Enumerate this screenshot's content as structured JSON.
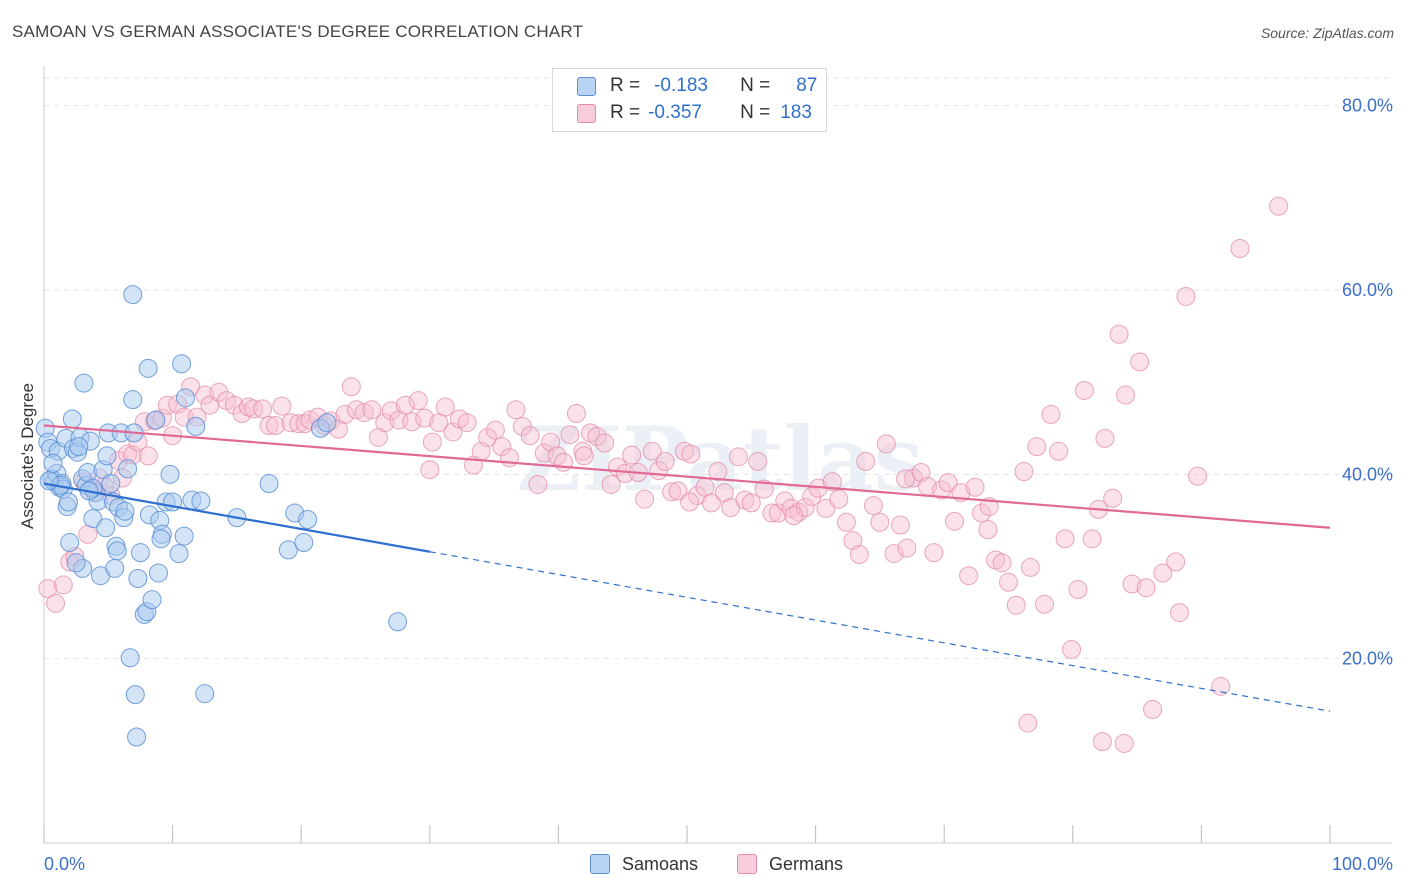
{
  "header": {
    "title": "SAMOAN VS GERMAN ASSOCIATE'S DEGREE CORRELATION CHART",
    "source": "Source: ZipAtlas.com"
  },
  "legend": {
    "samoans": {
      "r_label": "R =",
      "r_value": "-0.183",
      "n_label": "N =",
      "n_value": "87"
    },
    "germans": {
      "r_label": "R =",
      "r_value": "-0.357",
      "n_label": "N =",
      "n_value": "183"
    }
  },
  "watermark": "ZIPatlas",
  "colors": {
    "samoan_fill": "#a9c9f0",
    "samoan_stroke": "#5b8fd6",
    "samoan_line": "#2f6fcf",
    "german_fill": "#f6bfd0",
    "german_stroke": "#e38aa8",
    "german_line": "#e06a94",
    "axis_label": "#3b6fc9"
  },
  "chart_data": {
    "type": "scatter",
    "title": "SAMOAN VS GERMAN ASSOCIATE'S DEGREE CORRELATION CHART",
    "xlabel": "",
    "ylabel": "Associate's Degree",
    "xlim": [
      0,
      100
    ],
    "ylim": [
      0,
      83
    ],
    "x_tick_labels": [
      "0.0%",
      "100.0%"
    ],
    "y_ticks": [
      20,
      40,
      60,
      80
    ],
    "y_tick_labels": [
      "20.0%",
      "40.0%",
      "60.0%",
      "80.0%"
    ],
    "grid": true,
    "legend_position": "bottom",
    "series": [
      {
        "name": "Samoans",
        "r": -0.183,
        "n": 87,
        "trend": {
          "x": [
            0,
            30
          ],
          "y": [
            39.0,
            31.6
          ],
          "extended_x": [
            30,
            100
          ],
          "extended_y": [
            31.6,
            14.3
          ]
        },
        "points": [
          [
            0.1,
            45.0
          ],
          [
            0.3,
            43.5
          ],
          [
            0.5,
            42.8
          ],
          [
            0.6,
            39.5
          ],
          [
            0.8,
            39.2
          ],
          [
            1.0,
            40.1
          ],
          [
            1.1,
            42.5
          ],
          [
            1.2,
            38.6
          ],
          [
            1.4,
            39.0
          ],
          [
            1.5,
            38.4
          ],
          [
            1.7,
            43.9
          ],
          [
            1.8,
            36.5
          ],
          [
            2.0,
            32.6
          ],
          [
            2.2,
            46.0
          ],
          [
            2.3,
            42.8
          ],
          [
            2.6,
            42.4
          ],
          [
            2.8,
            44.0
          ],
          [
            3.0,
            39.5
          ],
          [
            3.0,
            29.8
          ],
          [
            3.1,
            49.9
          ],
          [
            3.3,
            38.8
          ],
          [
            3.4,
            40.2
          ],
          [
            3.6,
            43.6
          ],
          [
            3.8,
            35.2
          ],
          [
            4.0,
            38.0
          ],
          [
            4.2,
            37.1
          ],
          [
            4.4,
            29.0
          ],
          [
            4.6,
            40.5
          ],
          [
            4.8,
            34.2
          ],
          [
            5.0,
            44.5
          ],
          [
            5.2,
            39.0
          ],
          [
            5.4,
            37.0
          ],
          [
            5.6,
            32.2
          ],
          [
            5.7,
            31.7
          ],
          [
            5.8,
            36.4
          ],
          [
            6.0,
            44.5
          ],
          [
            6.2,
            35.3
          ],
          [
            6.5,
            40.6
          ],
          [
            6.7,
            20.1
          ],
          [
            6.9,
            48.1
          ],
          [
            7.0,
            44.5
          ],
          [
            7.1,
            16.1
          ],
          [
            7.3,
            28.7
          ],
          [
            7.5,
            31.5
          ],
          [
            7.8,
            24.8
          ],
          [
            8.0,
            25.1
          ],
          [
            8.1,
            51.5
          ],
          [
            8.2,
            35.6
          ],
          [
            8.4,
            26.4
          ],
          [
            8.7,
            45.9
          ],
          [
            8.9,
            29.3
          ],
          [
            9.0,
            35.0
          ],
          [
            9.2,
            33.5
          ],
          [
            9.5,
            37.0
          ],
          [
            9.8,
            40.0
          ],
          [
            10.0,
            37.0
          ],
          [
            10.5,
            31.4
          ],
          [
            10.7,
            52.0
          ],
          [
            10.9,
            33.3
          ],
          [
            11.0,
            48.3
          ],
          [
            11.5,
            37.2
          ],
          [
            11.8,
            45.2
          ],
          [
            12.2,
            37.1
          ],
          [
            12.5,
            16.2
          ],
          [
            15.0,
            35.3
          ],
          [
            17.5,
            39.0
          ],
          [
            19.0,
            31.8
          ],
          [
            19.5,
            35.8
          ],
          [
            20.2,
            32.6
          ],
          [
            20.5,
            35.1
          ],
          [
            21.5,
            45.0
          ],
          [
            22.0,
            45.6
          ],
          [
            27.5,
            24.0
          ],
          [
            7.2,
            11.5
          ],
          [
            6.9,
            59.5
          ],
          [
            3.8,
            38.5
          ],
          [
            2.5,
            30.4
          ],
          [
            1.3,
            38.8
          ],
          [
            0.4,
            39.3
          ],
          [
            4.9,
            42.0
          ],
          [
            5.5,
            29.8
          ],
          [
            3.5,
            38.2
          ],
          [
            6.3,
            36.0
          ],
          [
            9.1,
            33.0
          ],
          [
            1.9,
            37.0
          ],
          [
            2.7,
            43.0
          ],
          [
            0.7,
            41.2
          ]
        ]
      },
      {
        "name": "Germans",
        "r": -0.357,
        "n": 183,
        "trend": {
          "x": [
            0,
            100
          ],
          "y": [
            45.3,
            34.2
          ]
        },
        "points": [
          [
            0.3,
            27.6
          ],
          [
            0.9,
            26.0
          ],
          [
            1.5,
            28.0
          ],
          [
            2.0,
            30.5
          ],
          [
            2.4,
            31.1
          ],
          [
            3.1,
            39.2
          ],
          [
            3.4,
            33.5
          ],
          [
            3.9,
            38.1
          ],
          [
            4.3,
            39.6
          ],
          [
            4.7,
            38.7
          ],
          [
            5.2,
            37.7
          ],
          [
            5.8,
            41.5
          ],
          [
            6.1,
            39.6
          ],
          [
            6.5,
            42.2
          ],
          [
            6.9,
            42.1
          ],
          [
            7.3,
            43.5
          ],
          [
            7.8,
            45.7
          ],
          [
            8.1,
            42.0
          ],
          [
            8.6,
            45.8
          ],
          [
            9.2,
            46.1
          ],
          [
            9.6,
            47.5
          ],
          [
            10.0,
            44.2
          ],
          [
            10.4,
            47.6
          ],
          [
            10.9,
            46.2
          ],
          [
            11.4,
            49.5
          ],
          [
            11.9,
            46.2
          ],
          [
            12.5,
            48.6
          ],
          [
            12.9,
            47.5
          ],
          [
            13.6,
            48.9
          ],
          [
            14.2,
            48.0
          ],
          [
            14.8,
            47.5
          ],
          [
            15.4,
            46.6
          ],
          [
            15.9,
            47.3
          ],
          [
            16.3,
            47.1
          ],
          [
            17.0,
            47.1
          ],
          [
            17.5,
            45.3
          ],
          [
            18.0,
            45.3
          ],
          [
            18.5,
            47.4
          ],
          [
            19.2,
            45.6
          ],
          [
            19.8,
            45.5
          ],
          [
            20.3,
            45.5
          ],
          [
            20.7,
            45.9
          ],
          [
            21.3,
            46.2
          ],
          [
            21.8,
            45.3
          ],
          [
            22.3,
            45.8
          ],
          [
            22.9,
            44.9
          ],
          [
            23.4,
            46.5
          ],
          [
            23.9,
            49.5
          ],
          [
            24.3,
            47.0
          ],
          [
            24.9,
            46.7
          ],
          [
            25.5,
            47.0
          ],
          [
            26.0,
            44.0
          ],
          [
            26.5,
            45.6
          ],
          [
            27.0,
            46.9
          ],
          [
            27.6,
            45.9
          ],
          [
            28.1,
            47.5
          ],
          [
            28.6,
            45.7
          ],
          [
            29.1,
            48.0
          ],
          [
            29.6,
            46.1
          ],
          [
            30.2,
            43.5
          ],
          [
            30.7,
            45.6
          ],
          [
            31.2,
            47.3
          ],
          [
            31.8,
            44.6
          ],
          [
            32.3,
            46.0
          ],
          [
            32.9,
            45.6
          ],
          [
            33.4,
            41.0
          ],
          [
            34.0,
            42.5
          ],
          [
            34.5,
            44.0
          ],
          [
            35.1,
            44.8
          ],
          [
            35.6,
            43.0
          ],
          [
            36.2,
            41.8
          ],
          [
            36.7,
            47.0
          ],
          [
            37.2,
            45.2
          ],
          [
            37.8,
            44.2
          ],
          [
            38.4,
            38.9
          ],
          [
            38.9,
            42.3
          ],
          [
            39.4,
            43.5
          ],
          [
            39.9,
            42.0
          ],
          [
            40.4,
            41.3
          ],
          [
            40.9,
            44.3
          ],
          [
            41.4,
            46.6
          ],
          [
            41.9,
            42.5
          ],
          [
            42.5,
            44.5
          ],
          [
            43.0,
            44.1
          ],
          [
            43.6,
            43.4
          ],
          [
            44.1,
            38.9
          ],
          [
            44.6,
            40.8
          ],
          [
            45.2,
            40.1
          ],
          [
            45.7,
            42.1
          ],
          [
            46.2,
            40.2
          ],
          [
            46.7,
            37.3
          ],
          [
            47.3,
            42.5
          ],
          [
            47.8,
            40.4
          ],
          [
            48.3,
            41.4
          ],
          [
            48.8,
            38.1
          ],
          [
            49.3,
            38.2
          ],
          [
            49.8,
            42.5
          ],
          [
            50.3,
            42.2
          ],
          [
            50.8,
            37.7
          ],
          [
            51.4,
            38.6
          ],
          [
            51.9,
            36.9
          ],
          [
            52.4,
            40.3
          ],
          [
            52.9,
            38.0
          ],
          [
            53.4,
            36.4
          ],
          [
            54.0,
            41.9
          ],
          [
            54.5,
            37.2
          ],
          [
            55.0,
            36.9
          ],
          [
            55.5,
            41.4
          ],
          [
            56.0,
            38.4
          ],
          [
            56.6,
            35.8
          ],
          [
            57.1,
            35.8
          ],
          [
            57.6,
            37.1
          ],
          [
            58.1,
            36.3
          ],
          [
            58.7,
            35.9
          ],
          [
            59.2,
            36.4
          ],
          [
            59.7,
            37.6
          ],
          [
            60.2,
            38.5
          ],
          [
            60.8,
            36.3
          ],
          [
            61.3,
            39.2
          ],
          [
            61.8,
            37.3
          ],
          [
            62.4,
            34.8
          ],
          [
            62.9,
            32.8
          ],
          [
            63.4,
            31.3
          ],
          [
            63.9,
            41.4
          ],
          [
            64.5,
            36.6
          ],
          [
            65.0,
            34.8
          ],
          [
            65.5,
            43.3
          ],
          [
            66.1,
            31.4
          ],
          [
            66.6,
            34.5
          ],
          [
            67.1,
            32.0
          ],
          [
            67.6,
            39.6
          ],
          [
            68.2,
            40.2
          ],
          [
            68.7,
            38.7
          ],
          [
            69.2,
            31.5
          ],
          [
            69.8,
            38.3
          ],
          [
            70.3,
            39.1
          ],
          [
            70.8,
            34.9
          ],
          [
            71.3,
            38.0
          ],
          [
            71.9,
            29.0
          ],
          [
            72.4,
            38.6
          ],
          [
            72.9,
            35.8
          ],
          [
            73.4,
            34.0
          ],
          [
            74.0,
            30.7
          ],
          [
            74.5,
            30.4
          ],
          [
            75.0,
            28.3
          ],
          [
            75.6,
            25.8
          ],
          [
            76.2,
            40.3
          ],
          [
            76.7,
            29.9
          ],
          [
            77.2,
            43.0
          ],
          [
            77.8,
            25.9
          ],
          [
            78.3,
            46.5
          ],
          [
            78.9,
            42.5
          ],
          [
            79.4,
            33.0
          ],
          [
            79.9,
            21.0
          ],
          [
            80.4,
            27.5
          ],
          [
            80.9,
            49.1
          ],
          [
            81.5,
            33.0
          ],
          [
            82.0,
            36.2
          ],
          [
            82.5,
            43.9
          ],
          [
            83.1,
            37.4
          ],
          [
            83.6,
            55.2
          ],
          [
            84.1,
            48.6
          ],
          [
            84.6,
            28.1
          ],
          [
            85.2,
            52.2
          ],
          [
            85.7,
            27.7
          ],
          [
            86.2,
            14.5
          ],
          [
            87.0,
            29.3
          ],
          [
            88.0,
            30.5
          ],
          [
            88.3,
            25.0
          ],
          [
            88.8,
            59.3
          ],
          [
            89.7,
            39.8
          ],
          [
            91.5,
            17.0
          ],
          [
            93.0,
            64.5
          ],
          [
            96.0,
            69.1
          ],
          [
            76.5,
            13.0
          ],
          [
            82.3,
            11.0
          ],
          [
            84.0,
            10.8
          ],
          [
            73.5,
            36.5
          ],
          [
            67.0,
            39.5
          ],
          [
            58.3,
            35.5
          ],
          [
            50.2,
            37.0
          ],
          [
            42.0,
            42.0
          ],
          [
            30.0,
            40.5
          ]
        ]
      }
    ]
  }
}
